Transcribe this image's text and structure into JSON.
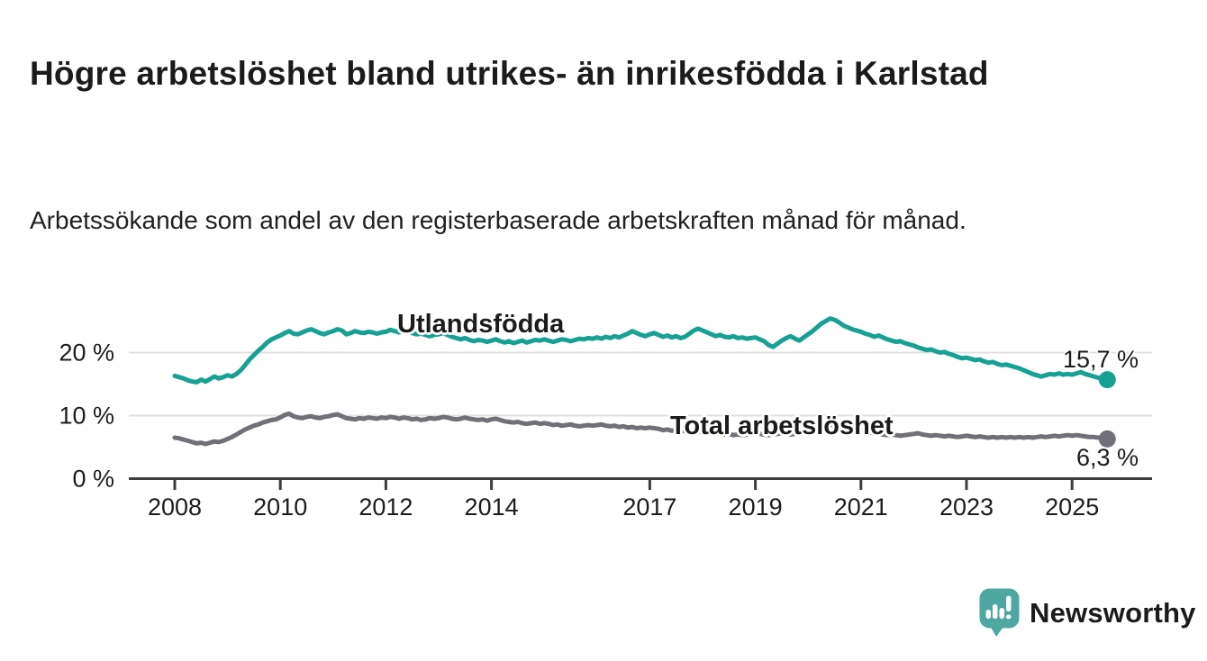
{
  "header": {
    "title": "Högre arbetslöshet bland utrikes- än inrikesfödda i Karlstad",
    "subtitle": "Arbetssökande som andel av den registerbaserade arbetskraften månad för månad."
  },
  "footer": {
    "brand": "Newsworthy",
    "brand_color": "#44a39c",
    "logo_icon": "newsworthy-speech-bubble-bar-chart-icon"
  },
  "chart_data": {
    "type": "line",
    "title": "Högre arbetslöshet bland utrikes- än inrikesfödda i Karlstad",
    "subtitle": "Arbetssökande som andel av den registerbaserade arbetskraften månad för månad.",
    "frequency": "monthly",
    "x_start": "2008-01",
    "x_end": "2025-09",
    "ylim": [
      0,
      27
    ],
    "grid": "horizontal",
    "legend_position": "inline-labels",
    "axis_color": "#3d3d3d",
    "grid_color": "#e0e0e0",
    "yticks": [
      {
        "value": 0,
        "label": "0 %"
      },
      {
        "value": 10,
        "label": "10 %"
      },
      {
        "value": 20,
        "label": "20 %"
      }
    ],
    "xticks": [
      {
        "year": 2008,
        "label": "2008"
      },
      {
        "year": 2010,
        "label": "2010"
      },
      {
        "year": 2012,
        "label": "2012"
      },
      {
        "year": 2014,
        "label": "2014"
      },
      {
        "year": 2017,
        "label": "2017"
      },
      {
        "year": 2019,
        "label": "2019"
      },
      {
        "year": 2021,
        "label": "2021"
      },
      {
        "year": 2023,
        "label": "2023"
      },
      {
        "year": 2025,
        "label": "2025"
      }
    ],
    "series": [
      {
        "name": "Utlandsfödda",
        "color": "#17a193",
        "end_label": "15,7 %",
        "end_value": 15.7,
        "values": [
          16.3,
          16.1,
          15.9,
          15.6,
          15.4,
          15.3,
          15.7,
          15.4,
          15.8,
          16.2,
          15.9,
          16.1,
          16.4,
          16.2,
          16.6,
          17.2,
          18.0,
          18.9,
          19.6,
          20.3,
          20.9,
          21.6,
          22.1,
          22.4,
          22.7,
          23.1,
          23.4,
          23.0,
          22.9,
          23.2,
          23.5,
          23.7,
          23.4,
          23.1,
          22.9,
          23.2,
          23.4,
          23.7,
          23.5,
          22.9,
          23.1,
          23.4,
          23.2,
          23.1,
          23.3,
          23.2,
          23.0,
          23.2,
          23.3,
          23.6,
          23.4,
          23.2,
          23.5,
          23.3,
          23.1,
          22.9,
          23.0,
          22.8,
          22.6,
          22.8,
          22.9,
          23.1,
          22.8,
          22.5,
          22.3,
          22.1,
          22.3,
          22.0,
          21.8,
          22.0,
          21.9,
          21.7,
          21.9,
          22.1,
          21.8,
          21.6,
          21.8,
          21.5,
          21.7,
          21.9,
          21.6,
          21.8,
          22.0,
          21.9,
          22.1,
          21.9,
          21.7,
          21.9,
          22.1,
          22.0,
          21.8,
          22.0,
          22.2,
          22.1,
          22.3,
          22.2,
          22.4,
          22.2,
          22.5,
          22.3,
          22.6,
          22.4,
          22.7,
          23.0,
          23.4,
          23.1,
          22.8,
          22.6,
          22.9,
          23.1,
          22.8,
          22.5,
          22.7,
          22.4,
          22.6,
          22.3,
          22.5,
          23.0,
          23.5,
          23.8,
          23.5,
          23.2,
          22.9,
          22.6,
          22.8,
          22.5,
          22.4,
          22.6,
          22.3,
          22.4,
          22.2,
          22.3,
          22.4,
          22.1,
          21.8,
          21.2,
          20.9,
          21.4,
          21.9,
          22.3,
          22.6,
          22.2,
          21.9,
          22.4,
          22.9,
          23.4,
          24.0,
          24.6,
          25.0,
          25.4,
          25.2,
          24.8,
          24.3,
          24.0,
          23.7,
          23.5,
          23.3,
          23.0,
          22.8,
          22.5,
          22.7,
          22.4,
          22.1,
          21.9,
          21.7,
          21.8,
          21.5,
          21.3,
          21.1,
          20.8,
          20.6,
          20.4,
          20.5,
          20.2,
          20.0,
          20.1,
          19.8,
          19.6,
          19.3,
          19.1,
          19.2,
          19.0,
          18.8,
          18.9,
          18.6,
          18.4,
          18.5,
          18.2,
          18.0,
          18.1,
          17.9,
          17.7,
          17.5,
          17.2,
          16.9,
          16.6,
          16.4,
          16.2,
          16.4,
          16.6,
          16.5,
          16.7,
          16.5,
          16.6,
          16.5,
          16.7,
          16.9,
          16.6,
          16.4,
          16.2,
          16.0,
          15.9,
          15.7
        ]
      },
      {
        "name": "Total arbetslöshet",
        "color": "#716f77",
        "end_label": "6,3 %",
        "end_value": 6.3,
        "values": [
          6.5,
          6.4,
          6.2,
          6.0,
          5.8,
          5.6,
          5.7,
          5.5,
          5.7,
          5.9,
          5.8,
          6.0,
          6.3,
          6.6,
          7.0,
          7.4,
          7.8,
          8.1,
          8.4,
          8.6,
          8.9,
          9.1,
          9.3,
          9.4,
          9.7,
          10.1,
          10.3,
          9.9,
          9.7,
          9.6,
          9.8,
          9.9,
          9.7,
          9.6,
          9.8,
          9.9,
          10.1,
          10.2,
          9.9,
          9.6,
          9.5,
          9.4,
          9.6,
          9.5,
          9.7,
          9.6,
          9.5,
          9.7,
          9.6,
          9.8,
          9.7,
          9.5,
          9.7,
          9.6,
          9.4,
          9.5,
          9.3,
          9.4,
          9.6,
          9.5,
          9.6,
          9.8,
          9.7,
          9.5,
          9.4,
          9.5,
          9.7,
          9.5,
          9.4,
          9.3,
          9.4,
          9.2,
          9.4,
          9.5,
          9.3,
          9.1,
          9.0,
          8.9,
          9.0,
          8.8,
          8.7,
          8.8,
          8.9,
          8.7,
          8.8,
          8.7,
          8.5,
          8.6,
          8.4,
          8.5,
          8.6,
          8.4,
          8.3,
          8.4,
          8.5,
          8.4,
          8.5,
          8.6,
          8.4,
          8.3,
          8.4,
          8.2,
          8.3,
          8.1,
          8.2,
          8.0,
          8.1,
          8.0,
          8.1,
          8.0,
          7.9,
          7.7,
          7.8,
          7.6,
          7.7,
          7.5,
          7.6,
          7.5,
          7.4,
          7.5,
          7.4,
          7.3,
          7.2,
          7.1,
          7.2,
          7.0,
          7.1,
          6.9,
          7.0,
          6.9,
          7.0,
          7.1,
          7.2,
          7.1,
          7.0,
          6.9,
          7.0,
          7.1,
          7.2,
          7.1,
          7.0,
          7.1,
          7.2,
          7.3,
          7.4,
          7.6,
          7.9,
          8.2,
          8.4,
          8.5,
          8.4,
          8.2,
          8.0,
          7.9,
          7.7,
          7.6,
          7.5,
          7.4,
          7.3,
          7.2,
          7.1,
          7.0,
          6.9,
          7.0,
          6.9,
          6.8,
          6.9,
          7.0,
          7.1,
          7.2,
          7.0,
          6.9,
          6.8,
          6.9,
          6.8,
          6.7,
          6.8,
          6.7,
          6.6,
          6.7,
          6.8,
          6.7,
          6.6,
          6.7,
          6.6,
          6.5,
          6.6,
          6.5,
          6.6,
          6.5,
          6.6,
          6.5,
          6.6,
          6.5,
          6.6,
          6.5,
          6.6,
          6.7,
          6.6,
          6.7,
          6.8,
          6.7,
          6.8,
          6.9,
          6.8,
          6.9,
          6.8,
          6.7,
          6.6,
          6.6,
          6.5,
          6.4,
          6.3
        ]
      }
    ]
  }
}
